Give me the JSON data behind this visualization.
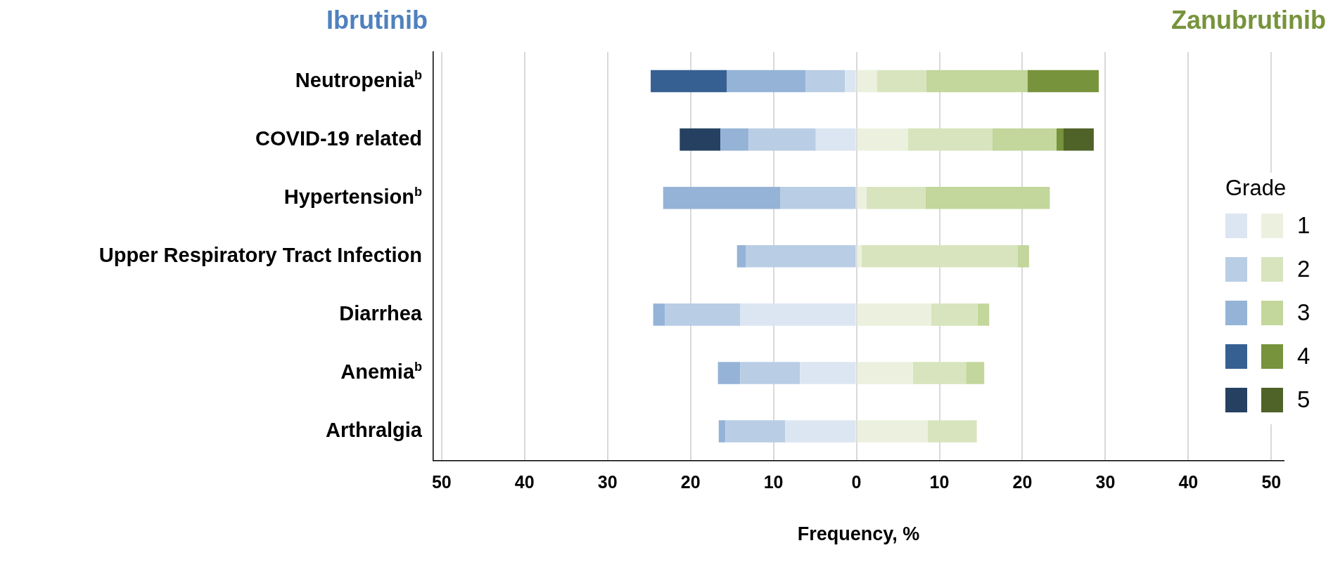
{
  "chart_data": {
    "type": "bar",
    "orientation": "horizontal",
    "stacked": true,
    "annotations": [
      "Ibrutinib",
      "Zanubrutinib"
    ],
    "xlabel": "Frequency, %",
    "legend_title": "Grade",
    "legend": "right",
    "grid": "x",
    "categories": [
      "Neutropenia$^{b}$",
      "COVID-19 related",
      "Hypertension$^{b}$",
      "Upper Respiratory Tract Infection",
      "Diarrhea",
      "Anemia$^{b}$",
      "Arthralgia"
    ],
    "xlim": [
      -51,
      51.5
    ],
    "xticks": [
      {
        "value": -50,
        "label": "50"
      },
      {
        "value": -40,
        "label": "40"
      },
      {
        "value": -30,
        "label": "30"
      },
      {
        "value": -20,
        "label": "20"
      },
      {
        "value": -10,
        "label": "10"
      },
      0,
      10,
      20,
      30,
      40,
      50
    ],
    "series": [
      {
        "color": "#dce6f2",
        "values": [
          -1.4,
          -4.9,
          null,
          null,
          -14.0,
          -6.8,
          -8.6
        ]
      },
      {
        "color": "#b9cde5",
        "values": [
          -4.7,
          -8.1,
          -9.2,
          -13.3,
          -9.1,
          -7.2,
          -7.2
        ]
      },
      {
        "color": "#95b3d7",
        "values": [
          -9.5,
          -3.4,
          -14.1,
          -1.1,
          -1.4,
          -2.7,
          -0.8
        ]
      },
      {
        "color": "#366092",
        "values": [
          -9.2,
          null,
          null,
          null,
          null,
          null,
          null
        ]
      },
      {
        "color": "#254061",
        "values": [
          null,
          -4.9,
          null,
          null,
          null,
          null,
          null
        ]
      },
      {
        "name": "1",
        "color": "#ebf1de",
        "values": [
          2.5,
          6.2,
          1.2,
          0.6,
          9.0,
          6.8,
          8.6
        ]
      },
      {
        "name": "2",
        "color": "#d7e4bd",
        "values": [
          5.9,
          10.2,
          7.1,
          18.8,
          5.6,
          6.4,
          5.9
        ]
      },
      {
        "name": "3",
        "color": "#c3d69b",
        "values": [
          12.2,
          7.7,
          15.0,
          1.4,
          1.4,
          2.2,
          null
        ]
      },
      {
        "name": "4",
        "color": "#77933c",
        "values": [
          8.6,
          0.8,
          null,
          null,
          null,
          null,
          null
        ]
      },
      {
        "name": "5",
        "color": "#4f6228",
        "values": [
          null,
          3.7,
          null,
          null,
          null,
          null,
          null
        ]
      }
    ]
  }
}
